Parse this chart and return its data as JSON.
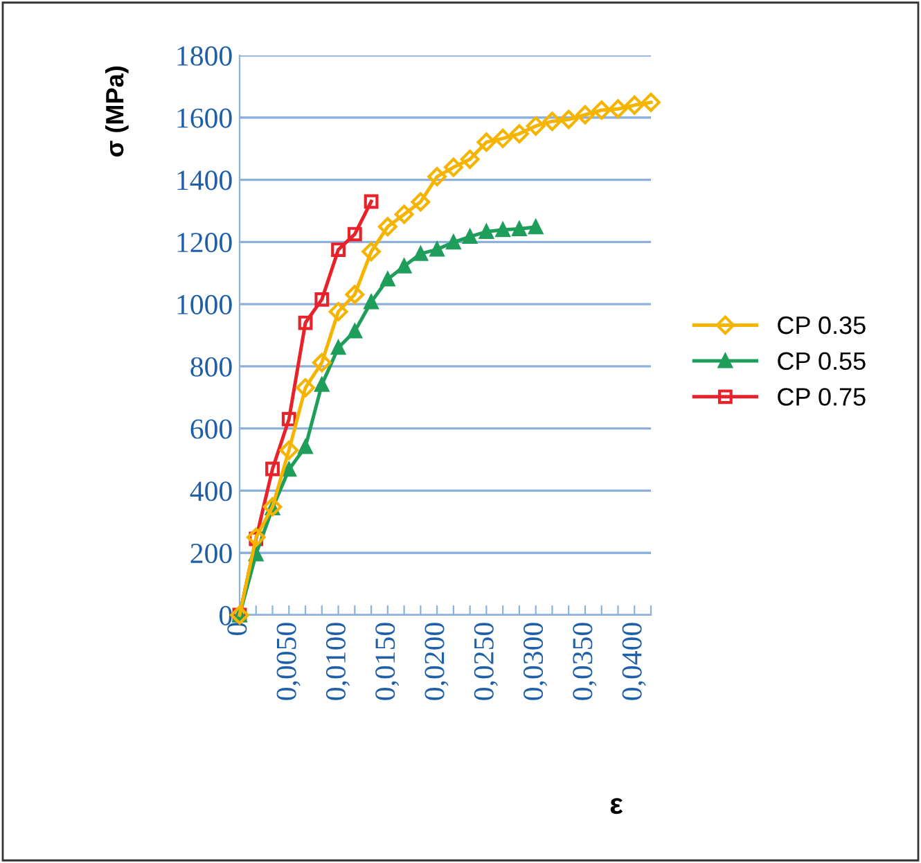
{
  "chart_data": {
    "type": "line",
    "ylabel": "σ (MPa)",
    "xlabel": "ε",
    "categories": [
      "0",
      null,
      null,
      "0,0050",
      null,
      null,
      "0,0100",
      null,
      null,
      "0,0150",
      null,
      null,
      "0,0200",
      null,
      null,
      "0,0250",
      null,
      null,
      "0,0300",
      null,
      null,
      "0,0350",
      null,
      null,
      "0,0400",
      null
    ],
    "series": [
      {
        "name": "CP 0.35",
        "color": "#f5b400",
        "marker": "diamond",
        "values": [
          0,
          250,
          348,
          530,
          731,
          812,
          976,
          1031,
          1169,
          1249,
          1289,
          1329,
          1410,
          1440,
          1466,
          1521,
          1533,
          1548,
          1573,
          1588,
          1594,
          1609,
          1624,
          1628,
          1640,
          1649
        ]
      },
      {
        "name": "CP 0.55",
        "color": "#1e9e5a",
        "marker": "triangle",
        "values": [
          0,
          196,
          344,
          468,
          541,
          741,
          860,
          913,
          1007,
          1080,
          1122,
          1162,
          1176,
          1199,
          1217,
          1233,
          1239,
          1242,
          1248,
          null,
          null,
          null,
          null,
          null,
          null,
          null
        ]
      },
      {
        "name": "CP 0.75",
        "color": "#e8222a",
        "marker": "square",
        "values": [
          0,
          245,
          470,
          630,
          940,
          1015,
          1175,
          1225,
          1330,
          null,
          null,
          null,
          null,
          null,
          null,
          null,
          null,
          null,
          null,
          null,
          null,
          null,
          null,
          null,
          null,
          null
        ]
      }
    ],
    "ylim": [
      0,
      1800
    ],
    "yticks": [
      0,
      200,
      400,
      600,
      800,
      1000,
      1200,
      1400,
      1600,
      1800
    ],
    "grid": "y",
    "legend": "right"
  }
}
